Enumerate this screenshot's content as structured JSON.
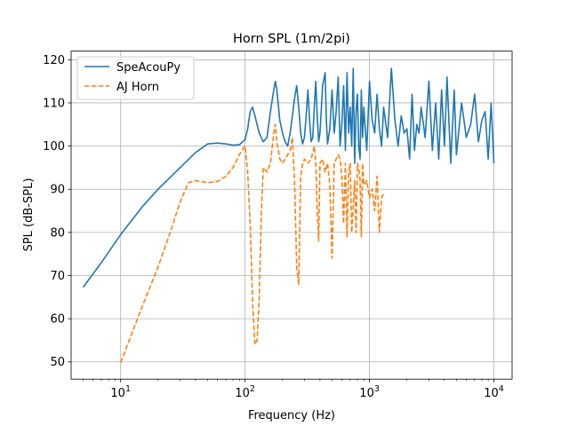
{
  "chart_data": {
    "type": "line",
    "title": "Horn SPL (1m/2pi)",
    "xlabel": "Frequency (Hz)",
    "ylabel": "SPL (dB-SPL)",
    "xscale": "log",
    "xlim": [
      4,
      14000
    ],
    "ylim": [
      46,
      122
    ],
    "grid": true,
    "legend_position": "top-left",
    "xticks": [
      {
        "value": 10,
        "base": "10",
        "exp": "1"
      },
      {
        "value": 100,
        "base": "10",
        "exp": "2"
      },
      {
        "value": 1000,
        "base": "10",
        "exp": "3"
      },
      {
        "value": 10000,
        "base": "10",
        "exp": "4"
      }
    ],
    "yticks": [
      {
        "value": 50,
        "label": "50"
      },
      {
        "value": 60,
        "label": "60"
      },
      {
        "value": 70,
        "label": "70"
      },
      {
        "value": 80,
        "label": "80"
      },
      {
        "value": 90,
        "label": "90"
      },
      {
        "value": 100,
        "label": "100"
      },
      {
        "value": 110,
        "label": "110"
      },
      {
        "value": 120,
        "label": "120"
      }
    ],
    "series": [
      {
        "name": "SpeAcouPy",
        "color": "#1f77b4",
        "dash": "solid",
        "x": [
          5,
          7,
          10,
          15,
          20,
          30,
          40,
          50,
          60,
          70,
          80,
          90,
          100,
          105,
          110,
          115,
          120,
          130,
          140,
          150,
          160,
          170,
          175,
          180,
          190,
          200,
          210,
          220,
          230,
          240,
          250,
          260,
          270,
          280,
          290,
          300,
          310,
          320,
          330,
          340,
          350,
          360,
          370,
          380,
          390,
          400,
          420,
          440,
          450,
          460,
          480,
          500,
          520,
          540,
          560,
          580,
          600,
          620,
          640,
          660,
          680,
          700,
          720,
          740,
          760,
          780,
          800,
          820,
          840,
          860,
          880,
          900,
          950,
          1000,
          1050,
          1100,
          1150,
          1200,
          1250,
          1300,
          1400,
          1500,
          1600,
          1700,
          1800,
          1900,
          2000,
          2100,
          2200,
          2300,
          2400,
          2500,
          2600,
          2800,
          3000,
          3200,
          3400,
          3600,
          3800,
          4000,
          4200,
          4500,
          4800,
          5000,
          5500,
          6000,
          6500,
          7000,
          7500,
          8000,
          8500,
          9000,
          9500,
          10000
        ],
        "y": [
          67.3,
          73,
          79.5,
          86,
          90,
          95,
          98.5,
          100.5,
          100.7,
          100.5,
          100.2,
          100.3,
          101.5,
          104,
          108,
          109,
          107,
          103,
          101,
          102,
          108,
          113,
          115,
          113,
          106,
          103,
          101,
          100,
          103,
          107,
          111,
          114,
          109,
          103,
          100.5,
          102,
          107,
          113,
          106,
          101,
          102,
          109,
          115,
          107,
          101,
          103,
          114,
          117,
          106,
          100.5,
          104,
          113,
          103,
          108,
          116,
          100,
          105,
          114,
          99,
          117,
          103,
          109,
          100,
          118,
          96,
          108,
          112,
          100,
          97,
          113,
          102,
          109,
          99,
          115,
          106,
          103,
          112,
          104,
          100,
          109,
          102,
          118,
          106,
          100,
          107,
          103,
          104,
          97,
          112,
          99,
          105,
          103,
          109,
          102,
          115,
          99,
          110,
          97,
          113,
          100,
          116,
          96,
          113,
          98,
          110,
          102,
          105,
          112,
          101,
          106,
          108,
          97,
          110,
          96
        ]
      },
      {
        "name": "AJ Horn",
        "color": "#ff7f0e",
        "dash": "dashed",
        "x": [
          10,
          15,
          20,
          25,
          30,
          35,
          40,
          50,
          60,
          70,
          80,
          90,
          100,
          105,
          110,
          115,
          120,
          125,
          130,
          135,
          140,
          150,
          160,
          170,
          175,
          180,
          190,
          200,
          210,
          220,
          230,
          240,
          250,
          260,
          270,
          280,
          290,
          300,
          320,
          340,
          360,
          370,
          380,
          390,
          400,
          420,
          440,
          460,
          480,
          500,
          520,
          540,
          560,
          580,
          600,
          620,
          640,
          660,
          680,
          700,
          720,
          740,
          760,
          780,
          800,
          820,
          840,
          860,
          880,
          900,
          950,
          1000,
          1050,
          1100,
          1150,
          1200,
          1250,
          1300
        ],
        "y": [
          49.8,
          63,
          72,
          80,
          87,
          91.5,
          92,
          91.5,
          91.8,
          93,
          95,
          98,
          100,
          94,
          82,
          64,
          54,
          55,
          65,
          84,
          95,
          94,
          96,
          103,
          105,
          101,
          97,
          96,
          97,
          98,
          99,
          102,
          92,
          72,
          68,
          93,
          96,
          97,
          96,
          97,
          100,
          96,
          85,
          78,
          96,
          97,
          94,
          96,
          91,
          74,
          96,
          97,
          98,
          97,
          93,
          82,
          96,
          79,
          94,
          96,
          80,
          86,
          92,
          80,
          96,
          95,
          92,
          79,
          96,
          91,
          92,
          88,
          90,
          85,
          93,
          80,
          88,
          89
        ]
      }
    ]
  }
}
